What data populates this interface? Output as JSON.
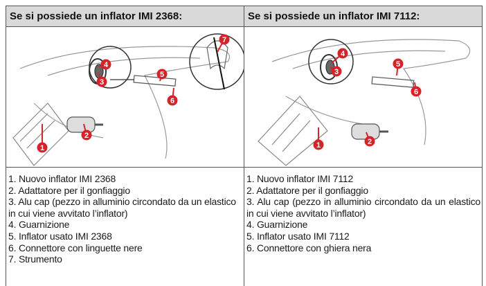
{
  "table": {
    "headers": [
      "Se si possiede un inflator IMI 2368:",
      "Se si possiede un inflator IMI 7112:"
    ],
    "figures": [
      {
        "callouts": [
          "1",
          "2",
          "3",
          "4",
          "5",
          "6",
          "7"
        ]
      },
      {
        "callouts": [
          "1",
          "2",
          "3",
          "4",
          "5",
          "6"
        ]
      }
    ],
    "lists": [
      [
        "1. Nuovo inflator IMI 2368",
        "2. Adattatore per il gonfiaggio",
        "3. Alu cap (pezzo in alluminio circondato da un elastico in cui viene avvitato l’inflator)",
        "4. Guarnizione",
        "5. Inflator usato IMI 2368",
        "6. Connettore con linguette nere",
        "7. Strumento"
      ],
      [
        "1. Nuovo inflator IMI 7112",
        "2. Adattatore per il gonfiaggio",
        "3. Alu cap (pezzo in alluminio circondato da un elastico in cui viene avvitato l’inflator)",
        "4. Guarnizione",
        "5. Inflator usato IMI 7112",
        "6. Connettore con ghiera nera"
      ]
    ]
  }
}
